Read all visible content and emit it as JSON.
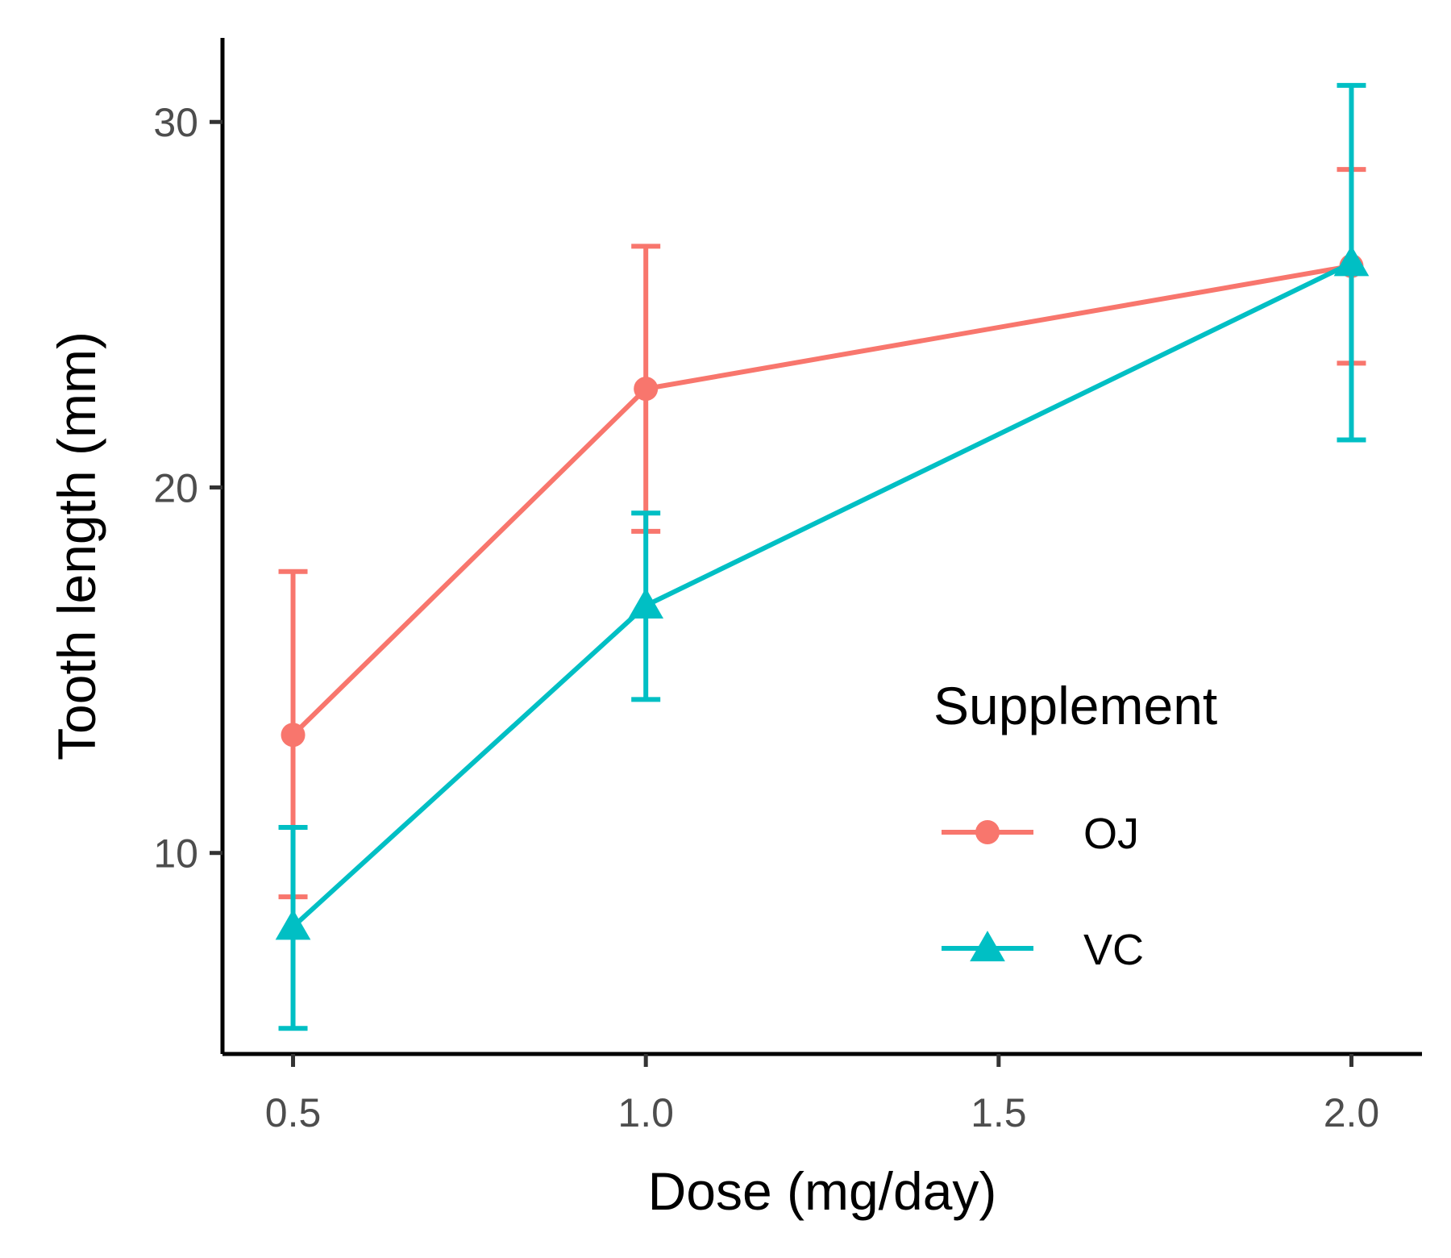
{
  "chart_data": {
    "type": "line",
    "title": "",
    "xlabel": "Dose (mg/day)",
    "ylabel": "Tooth length (mm)",
    "x": [
      0.5,
      1.0,
      2.0
    ],
    "xlim": [
      0.4,
      2.1
    ],
    "ylim": [
      4.5,
      32.3
    ],
    "xticks": [
      0.5,
      1.0,
      1.5,
      2.0
    ],
    "xtick_labels": [
      "0.5",
      "1.0",
      "1.5",
      "2.0"
    ],
    "yticks": [
      10,
      20,
      30
    ],
    "ytick_labels": [
      "10",
      "20",
      "30"
    ],
    "grid": false,
    "legend": {
      "title": "Supplement",
      "position": "right-inside"
    },
    "series": [
      {
        "name": "OJ",
        "color": "#F8766D",
        "marker": "circle",
        "values": [
          13.23,
          22.7,
          26.06
        ],
        "err_low": [
          8.8,
          18.8,
          23.4
        ],
        "err_high": [
          17.7,
          26.6,
          28.7
        ]
      },
      {
        "name": "VC",
        "color": "#00BFC4",
        "marker": "triangle",
        "values": [
          7.98,
          16.77,
          26.14
        ],
        "err_low": [
          5.2,
          14.2,
          21.3
        ],
        "err_high": [
          10.7,
          19.3,
          31.0
        ]
      }
    ]
  }
}
